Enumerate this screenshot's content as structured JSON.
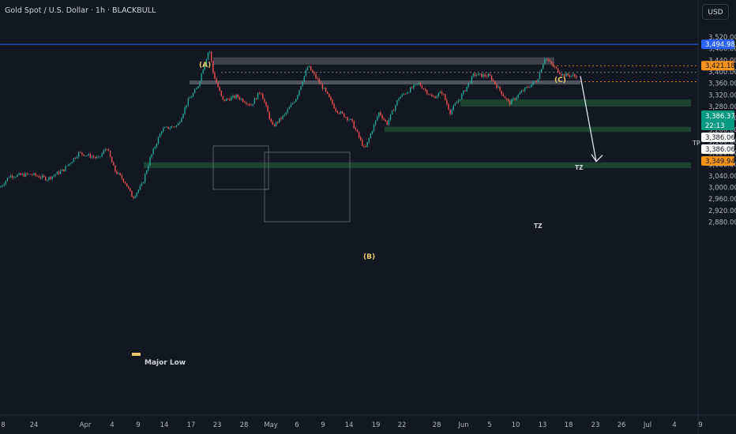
{
  "header": {
    "title": "Gold Spot / U.S. Dollar · 1h · BLACKBULL",
    "currency_button": "USD"
  },
  "colors": {
    "background": "#131722",
    "up_candle": "#26a69a",
    "down_candle": "#ef5350",
    "resistance_line": "#2962ff",
    "demand_zone": "#1e4a33",
    "supply_zone": "#5d5f66",
    "orange_label": "#f7931a",
    "teal_label": "#089981"
  },
  "chart_data": {
    "type": "candlestick",
    "x_tick_labels": [
      "8",
      "24",
      "Apr",
      "4",
      "9",
      "14",
      "17",
      "23",
      "28",
      "May",
      "6",
      "9",
      "14",
      "19",
      "22",
      "28",
      "Jun",
      "5",
      "10",
      "13",
      "18",
      "23",
      "26",
      "Jul",
      "4",
      "9"
    ],
    "y_tick_labels": [
      "3,520.00",
      "3,480.00",
      "3,440.00",
      "3,400.00",
      "3,360.00",
      "3,320.00",
      "3,280.00",
      "3,240.00",
      "3,200.00",
      "3,160.00",
      "3,120.00",
      "3,080.00",
      "3,040.00",
      "3,000.00",
      "2,960.00",
      "2,920.00",
      "2,880.00"
    ],
    "ylim": [
      2870,
      3545
    ],
    "price_path_approx": [
      [
        0,
        3000
      ],
      [
        12,
        3040
      ],
      [
        40,
        3045
      ],
      [
        60,
        3030
      ],
      [
        80,
        3060
      ],
      [
        100,
        3120
      ],
      [
        125,
        3100
      ],
      [
        135,
        3140
      ],
      [
        145,
        3060
      ],
      [
        158,
        3020
      ],
      [
        168,
        2965
      ],
      [
        180,
        3010
      ],
      [
        190,
        3100
      ],
      [
        205,
        3200
      ],
      [
        225,
        3215
      ],
      [
        238,
        3300
      ],
      [
        250,
        3345
      ],
      [
        258,
        3420
      ],
      [
        265,
        3480
      ],
      [
        270,
        3395
      ],
      [
        282,
        3300
      ],
      [
        300,
        3315
      ],
      [
        318,
        3285
      ],
      [
        330,
        3335
      ],
      [
        345,
        3210
      ],
      [
        360,
        3250
      ],
      [
        375,
        3310
      ],
      [
        390,
        3420
      ],
      [
        400,
        3380
      ],
      [
        410,
        3340
      ],
      [
        425,
        3270
      ],
      [
        445,
        3230
      ],
      [
        462,
        3130
      ],
      [
        470,
        3190
      ],
      [
        480,
        3260
      ],
      [
        490,
        3220
      ],
      [
        505,
        3310
      ],
      [
        530,
        3360
      ],
      [
        548,
        3310
      ],
      [
        560,
        3330
      ],
      [
        570,
        3260
      ],
      [
        585,
        3320
      ],
      [
        600,
        3390
      ],
      [
        620,
        3385
      ],
      [
        645,
        3290
      ],
      [
        660,
        3330
      ],
      [
        680,
        3370
      ],
      [
        690,
        3450
      ],
      [
        700,
        3420
      ],
      [
        712,
        3390
      ],
      [
        730,
        3385
      ]
    ],
    "levels": {
      "resistance_line": 3494.98,
      "prev_close": 3421.18,
      "current": 3386.37,
      "countdown": "22:13",
      "secondary": [
        3386.06,
        3386.06
      ],
      "tp_level": 3349.94
    },
    "price_labels": {
      "resistance": "3,494.98",
      "prev_close": "3,421.18",
      "current": "3,386.37",
      "countdown": "22:13",
      "secondary_1": "3,386.06",
      "secondary_2": "3,386.06",
      "tp_level": "3,349.94"
    },
    "annotations": [
      "(A)",
      "(B)",
      "(C)",
      "Major Low",
      "TZ",
      "TZ",
      "TP"
    ],
    "zones": [
      {
        "kind": "supply",
        "y_top": 3450,
        "y_bottom": 3425
      },
      {
        "kind": "demand",
        "label": "TZ",
        "y_top": 3305,
        "y_bottom": 3280
      },
      {
        "kind": "demand",
        "label": "TZ",
        "y_top": 3210,
        "y_bottom": 3192
      },
      {
        "kind": "demand",
        "y_top": 3087,
        "y_bottom": 3067
      }
    ],
    "projection": {
      "from": 3385,
      "to": 3090
    },
    "grid": false
  }
}
